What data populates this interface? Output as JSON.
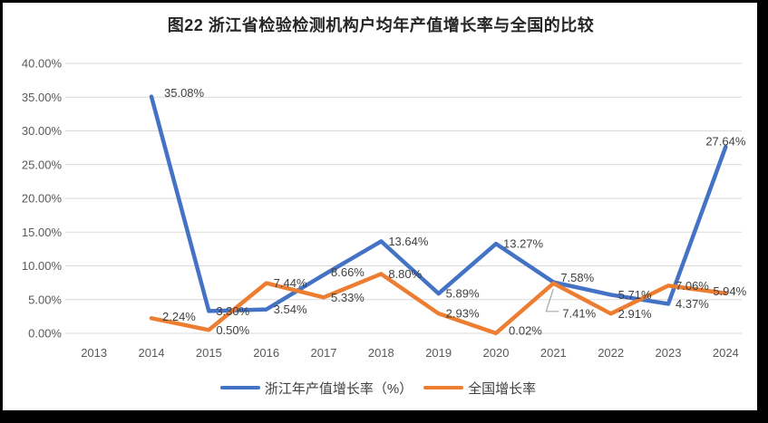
{
  "chart_data": {
    "type": "line",
    "title": "图22 浙江省检验检测机构户均年产值增长率与全国的比较",
    "categories": [
      "2013",
      "2014",
      "2015",
      "2016",
      "2017",
      "2018",
      "2019",
      "2020",
      "2021",
      "2022",
      "2023",
      "2024"
    ],
    "series": [
      {
        "name": "浙江年产值增长率（%）",
        "color": "#4472C4",
        "values": [
          null,
          35.08,
          3.3,
          3.54,
          8.66,
          13.64,
          5.89,
          13.27,
          7.58,
          5.71,
          4.37,
          27.64
        ]
      },
      {
        "name": "全国增长率",
        "color": "#ED7D31",
        "values": [
          null,
          2.24,
          0.5,
          7.44,
          5.33,
          8.8,
          2.93,
          0.02,
          7.41,
          2.91,
          7.06,
          5.94
        ]
      }
    ],
    "xlabel": "",
    "ylabel": "",
    "ylim": [
      0,
      40
    ],
    "ytick_step": 5,
    "ytick_suffix": "%",
    "ytick_decimals": 2,
    "grid": true,
    "legend_position": "bottom",
    "data_labels": true,
    "colors": {
      "gridline": "#D9D9D9",
      "axis_text": "#595959",
      "label_text": "#3F3F3F",
      "leader_line": "#A6A6A6",
      "background": "#FFFFFF",
      "frame": "#000000"
    }
  }
}
